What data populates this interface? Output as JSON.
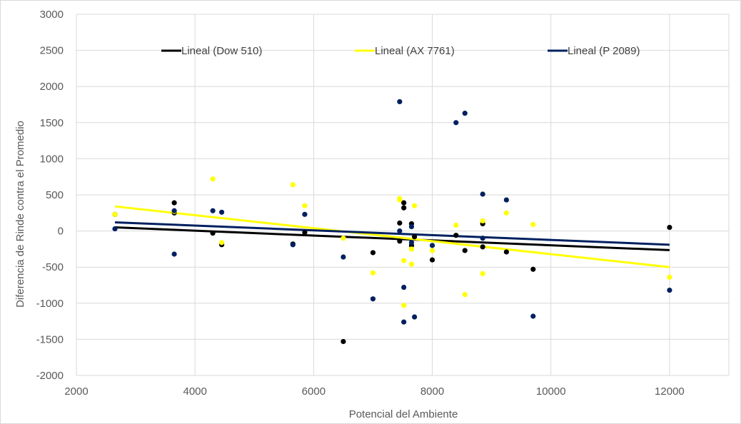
{
  "chart_data": {
    "type": "scatter",
    "title": "",
    "xlabel": "Potencial del Ambiente",
    "ylabel": "Diferencia de Rinde contra el Promedio",
    "xlim": [
      2000,
      13000
    ],
    "ylim": [
      -2000,
      3000
    ],
    "x_ticks": [
      2000,
      4000,
      6000,
      8000,
      10000,
      12000
    ],
    "y_ticks": [
      3000,
      2500,
      2000,
      1500,
      1000,
      500,
      0,
      -500,
      -1000,
      -1500,
      -2000
    ],
    "grid": true,
    "legend_position": "top",
    "series": [
      {
        "name": "Dow 510",
        "color": "#000000",
        "points": [
          [
            2650,
            230
          ],
          [
            3650,
            390
          ],
          [
            3650,
            250
          ],
          [
            4300,
            -30
          ],
          [
            4450,
            -190
          ],
          [
            5650,
            -180
          ],
          [
            5850,
            -20
          ],
          [
            6500,
            -1530
          ],
          [
            7000,
            -300
          ],
          [
            7450,
            110
          ],
          [
            7450,
            -140
          ],
          [
            7520,
            390
          ],
          [
            7520,
            320
          ],
          [
            7650,
            100
          ],
          [
            7650,
            -200
          ],
          [
            7700,
            -80
          ],
          [
            8000,
            -400
          ],
          [
            8400,
            -60
          ],
          [
            8550,
            -270
          ],
          [
            8850,
            100
          ],
          [
            8850,
            -220
          ],
          [
            9250,
            -290
          ],
          [
            9700,
            -530
          ],
          [
            12000,
            50
          ]
        ],
        "trend": {
          "label": "Lineal (Dow 510)",
          "x": [
            2650,
            12000
          ],
          "y": [
            50,
            -265
          ]
        }
      },
      {
        "name": "AX 7761",
        "color": "#ffff00",
        "points": [
          [
            2650,
            230
          ],
          [
            3650,
            270
          ],
          [
            4300,
            720
          ],
          [
            4450,
            -160
          ],
          [
            5650,
            640
          ],
          [
            5850,
            350
          ],
          [
            6500,
            -100
          ],
          [
            7000,
            -580
          ],
          [
            7450,
            450
          ],
          [
            7450,
            430
          ],
          [
            7520,
            -410
          ],
          [
            7520,
            -1030
          ],
          [
            7650,
            -250
          ],
          [
            7650,
            -460
          ],
          [
            7700,
            350
          ],
          [
            8000,
            -270
          ],
          [
            8400,
            80
          ],
          [
            8550,
            -880
          ],
          [
            8850,
            140
          ],
          [
            8850,
            -590
          ],
          [
            9250,
            250
          ],
          [
            9700,
            90
          ],
          [
            12000,
            -640
          ]
        ],
        "trend": {
          "label": "Lineal (AX 7761)",
          "x": [
            2650,
            12000
          ],
          "y": [
            340,
            -500
          ]
        }
      },
      {
        "name": "P 2089",
        "color": "#002060",
        "points": [
          [
            2650,
            30
          ],
          [
            3650,
            280
          ],
          [
            3650,
            -320
          ],
          [
            4300,
            280
          ],
          [
            4450,
            260
          ],
          [
            5650,
            -190
          ],
          [
            5850,
            230
          ],
          [
            6500,
            -360
          ],
          [
            7000,
            -940
          ],
          [
            7450,
            1790
          ],
          [
            7450,
            0
          ],
          [
            7520,
            -780
          ],
          [
            7520,
            -1260
          ],
          [
            7650,
            60
          ],
          [
            7650,
            -160
          ],
          [
            7700,
            -1190
          ],
          [
            8000,
            -200
          ],
          [
            8400,
            1500
          ],
          [
            8550,
            1630
          ],
          [
            8850,
            510
          ],
          [
            8850,
            -100
          ],
          [
            9250,
            430
          ],
          [
            9700,
            -1180
          ],
          [
            12000,
            -820
          ]
        ],
        "trend": {
          "label": "Lineal (P 2089)",
          "x": [
            2650,
            12000
          ],
          "y": [
            120,
            -190
          ]
        }
      }
    ]
  }
}
